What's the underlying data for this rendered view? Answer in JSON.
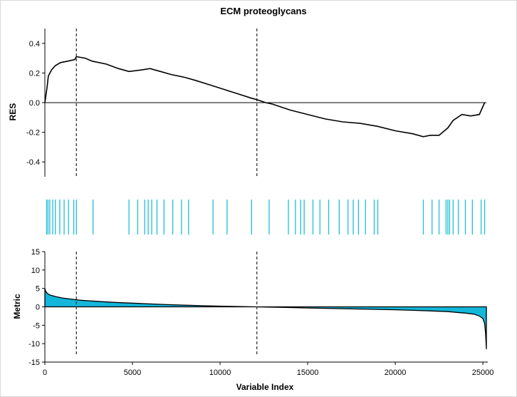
{
  "chart_data": [
    {
      "type": "line",
      "title": "ECM proteoglycans",
      "ylabel": "RES",
      "ylim": [
        -0.5,
        0.5
      ],
      "yticks": [
        "0.4",
        "0.2",
        "0.0",
        "-0.2",
        "-0.4"
      ],
      "xlim": [
        0,
        25200
      ],
      "vertical_dashed_lines": [
        1800,
        12100
      ],
      "series": [
        {
          "values_x": [
            0,
            120,
            200,
            380,
            600,
            900,
            1300,
            1700,
            1800,
            2300,
            2700,
            3500,
            4200,
            4800,
            5500,
            6000,
            6600,
            7200,
            8000,
            8600,
            9400,
            10200,
            11000,
            11800,
            12100,
            12600,
            13000,
            14000,
            15000,
            16000,
            17000,
            18000,
            19000,
            20000,
            21000,
            21600,
            22000,
            22500,
            23000,
            23300,
            23800,
            24300,
            24800,
            25100
          ],
          "values_y": [
            0.0,
            0.1,
            0.18,
            0.22,
            0.25,
            0.27,
            0.28,
            0.29,
            0.31,
            0.3,
            0.28,
            0.26,
            0.23,
            0.21,
            0.22,
            0.23,
            0.21,
            0.19,
            0.17,
            0.15,
            0.12,
            0.09,
            0.06,
            0.03,
            0.02,
            0.0,
            -0.01,
            -0.05,
            -0.08,
            -0.11,
            -0.13,
            -0.14,
            -0.16,
            -0.19,
            -0.21,
            -0.23,
            -0.22,
            -0.22,
            -0.17,
            -0.12,
            -0.08,
            -0.09,
            -0.08,
            0.0
          ]
        }
      ]
    },
    {
      "type": "rug",
      "hits": [
        100,
        180,
        280,
        450,
        600,
        850,
        1100,
        1350,
        1650,
        1800,
        2750,
        4800,
        5300,
        5700,
        5900,
        6100,
        6400,
        6800,
        7300,
        7800,
        8200,
        9600,
        10400,
        11800,
        12800,
        13900,
        14300,
        14600,
        14800,
        15300,
        15700,
        16200,
        16800,
        17300,
        17600,
        17900,
        18300,
        18800,
        19000,
        21600,
        22100,
        22500,
        22900,
        23000,
        23100,
        23300,
        23600,
        24000,
        24400,
        24900,
        25100
      ]
    },
    {
      "type": "area",
      "ylabel": "Metric",
      "xlabel": "Variable Index",
      "ylim": [
        -15,
        15
      ],
      "yticks": [
        "15",
        "10",
        "5",
        "0",
        "-5",
        "-10",
        "-15"
      ],
      "xticks": [
        "0",
        "5000",
        "10000",
        "15000",
        "20000",
        "25000"
      ],
      "xlim": [
        0,
        25200
      ],
      "vertical_dashed_lines": [
        1800,
        12100
      ],
      "series": [
        {
          "values_x": [
            0,
            50,
            150,
            300,
            600,
            1000,
            1500,
            2000,
            3000,
            4000,
            5000,
            6000,
            7000,
            8000,
            9000,
            10000,
            11000,
            12000,
            13000,
            14000,
            15000,
            16000,
            17000,
            18000,
            19000,
            20000,
            21000,
            22000,
            23000,
            23500,
            24000,
            24500,
            24800,
            25000,
            25100,
            25150,
            25200
          ],
          "values_y": [
            5.0,
            4.2,
            3.6,
            3.2,
            2.8,
            2.4,
            2.1,
            1.8,
            1.5,
            1.2,
            1.0,
            0.8,
            0.6,
            0.45,
            0.3,
            0.2,
            0.1,
            0.0,
            -0.1,
            -0.2,
            -0.3,
            -0.4,
            -0.5,
            -0.6,
            -0.7,
            -0.8,
            -0.95,
            -1.1,
            -1.3,
            -1.5,
            -1.7,
            -2.0,
            -2.5,
            -3.2,
            -4.5,
            -7.0,
            -11.5
          ]
        }
      ]
    }
  ],
  "colors": {
    "hit": "#1fbfd8",
    "fill": "#13b7da",
    "line": "#000000"
  }
}
